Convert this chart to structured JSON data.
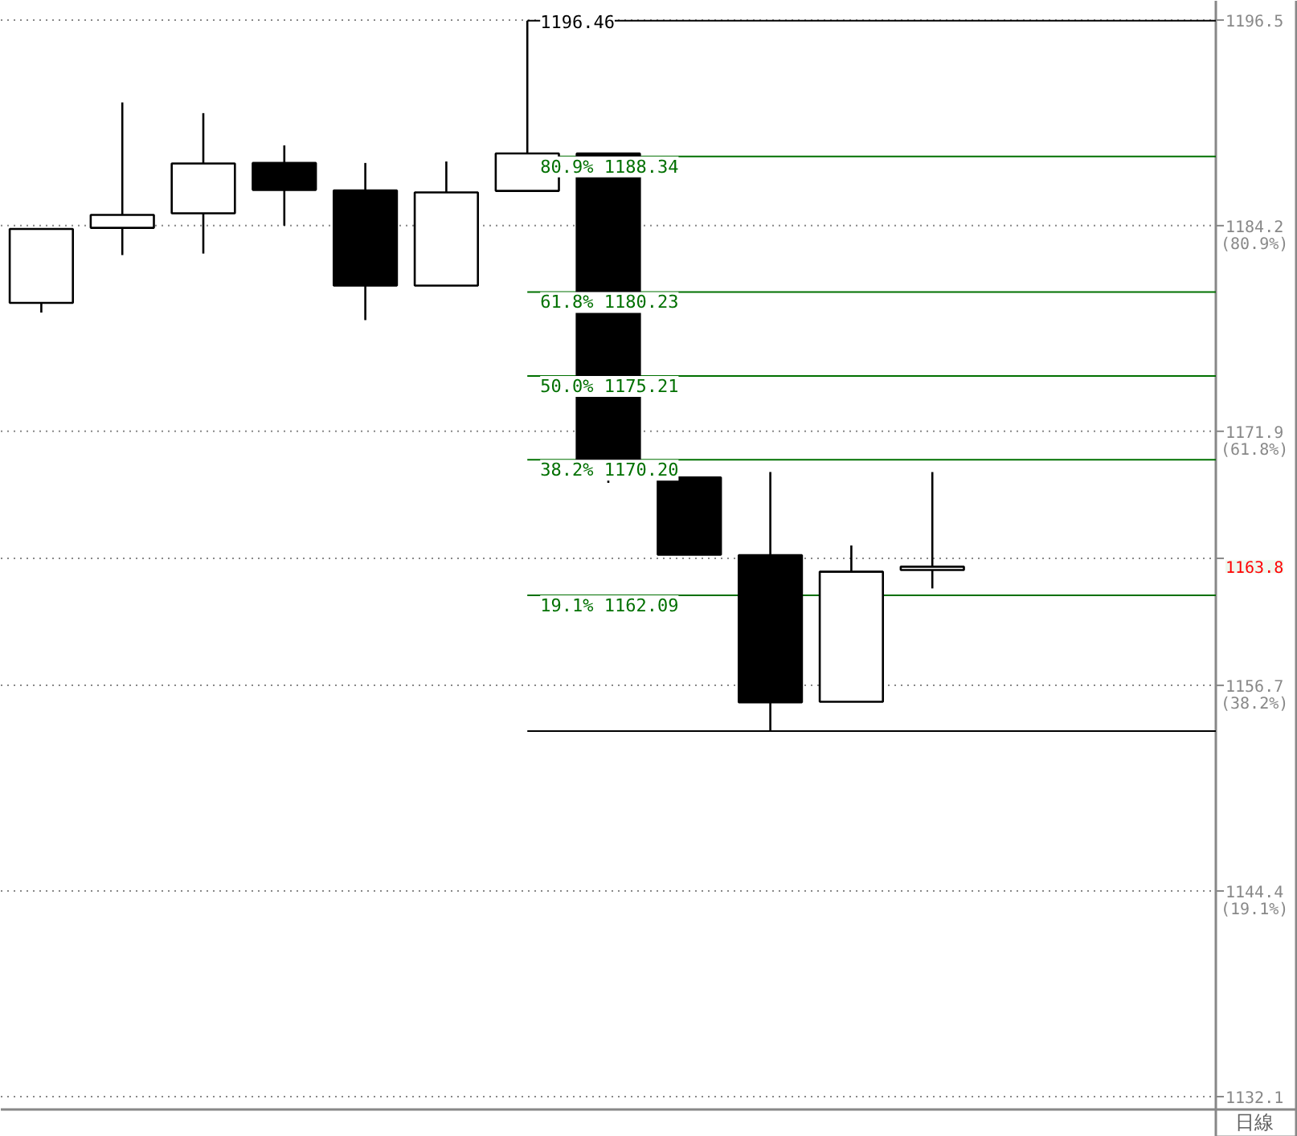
{
  "chart_data": {
    "type": "candlestick",
    "categories": [
      null,
      null,
      null,
      null,
      null,
      null,
      null,
      null,
      null,
      null,
      null,
      null,
      null,
      null,
      null
    ],
    "ohlc": [
      [
        1179.58,
        1184.0,
        1179.0,
        1184.0
      ],
      [
        1184.07,
        1191.57,
        1182.44,
        1184.84
      ],
      [
        1184.94,
        1190.93,
        1182.53,
        1187.92
      ],
      [
        1187.95,
        1189.0,
        1184.2,
        1186.34
      ],
      [
        1186.31,
        1187.95,
        1178.55,
        1180.61
      ],
      [
        1180.61,
        1188.04,
        1180.61,
        1186.19
      ],
      [
        1186.28,
        1196.46,
        1186.28,
        1188.52
      ],
      [
        1188.52,
        1188.52,
        1168.82,
        1169.14
      ],
      [
        1169.14,
        1169.14,
        1164.52,
        1164.52
      ],
      [
        1164.49,
        1169.46,
        1153.97,
        1155.68
      ],
      [
        1155.72,
        1165.07,
        1155.72,
        1163.5
      ],
      [
        1163.6,
        1169.46,
        1162.5,
        1163.8
      ],
      null,
      null,
      null
    ],
    "ylim": [
      1131.33,
      1197.65
    ],
    "yticks": [
      1196.5,
      {
        "value": 1184.2,
        "label": "1184.2\n(80.9%)"
      },
      {
        "value": 1171.9,
        "label": "1171.9\n(61.8%)"
      },
      {
        "value": 1164.3,
        "label": null
      },
      {
        "value": 1156.7,
        "label": "1156.7\n(38.2%)"
      },
      {
        "value": 1144.4,
        "label": "1144.4\n(19.1%)"
      },
      1132.1
    ],
    "grid": "y",
    "tick_labels": "y",
    "ref_lines": [
      {
        "axis": "y",
        "value": 1196.46,
        "label": "1196.46",
        "color": "#000000"
      },
      {
        "axis": "y",
        "value": 1188.34,
        "label": "80.9% 1188.34",
        "color": "#007000"
      },
      {
        "axis": "y",
        "value": 1180.23,
        "label": "61.8% 1180.23",
        "color": "#007000"
      },
      {
        "axis": "y",
        "value": 1175.21,
        "label": "50.0% 1175.21",
        "color": "#007000"
      },
      {
        "axis": "y",
        "value": 1170.2,
        "label": "38.2% 1170.20",
        "color": "#007000"
      },
      {
        "axis": "y",
        "value": 1162.09,
        "label": "19.1% 1162.09",
        "color": "#007000"
      },
      {
        "axis": "y",
        "value": 1153.97,
        "label": null,
        "color": "#000000"
      }
    ],
    "annotations": [
      "1163.8",
      "日線"
    ]
  }
}
